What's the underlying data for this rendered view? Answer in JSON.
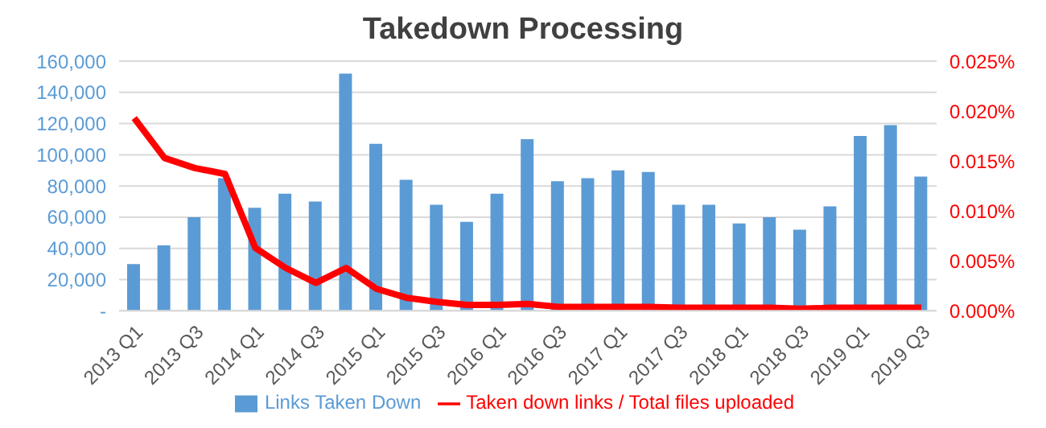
{
  "chart_data": {
    "type": "bar",
    "title": "Takedown Processing",
    "categories": [
      "2013 Q1",
      null,
      "2013 Q3",
      null,
      "2014 Q1",
      null,
      "2014 Q3",
      null,
      "2015 Q1",
      null,
      "2015 Q3",
      null,
      "2016 Q1",
      null,
      "2016 Q3",
      null,
      "2017 Q1",
      null,
      "2017 Q3",
      null,
      "2018 Q1",
      null,
      "2018 Q3",
      null,
      "2019 Q1",
      null,
      "2019 Q3"
    ],
    "series": [
      {
        "name": "Links Taken Down",
        "color": "#5b9bd5",
        "values": [
          30000,
          42000,
          60000,
          85000,
          66000,
          75000,
          70000,
          152000,
          107000,
          84000,
          68000,
          57000,
          75000,
          110000,
          83000,
          85000,
          90000,
          89000,
          68000,
          68000,
          56000,
          60000,
          52000,
          67000,
          112000,
          119000,
          86000
        ]
      },
      {
        "name": "Taken down links / Total files uploaded",
        "type": "line",
        "axis": "y2",
        "color": "#ff0000",
        "values": [
          0.0193,
          0.0153,
          0.0143,
          0.0137,
          0.0063,
          0.0043,
          0.0028,
          0.0043,
          0.0022,
          0.0013,
          0.0009,
          0.0006,
          0.0006,
          0.0007,
          0.0004,
          0.0004,
          0.0004,
          0.0004,
          0.0003,
          0.0003,
          0.0003,
          0.0003,
          0.0002,
          0.0003,
          0.0003,
          0.0003,
          0.0003
        ]
      }
    ],
    "ylim": [
      0,
      160000
    ],
    "yticks": [
      {
        "value": 0,
        "label": "-"
      },
      {
        "value": 20000,
        "label": "20,000"
      },
      {
        "value": 40000,
        "label": "40,000"
      },
      {
        "value": 60000,
        "label": "60,000"
      },
      {
        "value": 80000,
        "label": "80,000"
      },
      {
        "value": 100000,
        "label": "100,000"
      },
      {
        "value": 120000,
        "label": "120,000"
      },
      {
        "value": 140000,
        "label": "140,000"
      },
      {
        "value": 160000,
        "label": "160,000"
      }
    ],
    "y2lim": [
      0,
      0.025
    ],
    "y2ticks": [
      {
        "value": 0,
        "label": "0.000%"
      },
      {
        "value": 0.005,
        "label": "0.005%"
      },
      {
        "value": 0.01,
        "label": "0.010%"
      },
      {
        "value": 0.015,
        "label": "0.015%"
      },
      {
        "value": 0.02,
        "label": "0.020%"
      },
      {
        "value": 0.025,
        "label": "0.025%"
      }
    ],
    "grid": "y",
    "legend": "bottom",
    "marker": "none"
  }
}
